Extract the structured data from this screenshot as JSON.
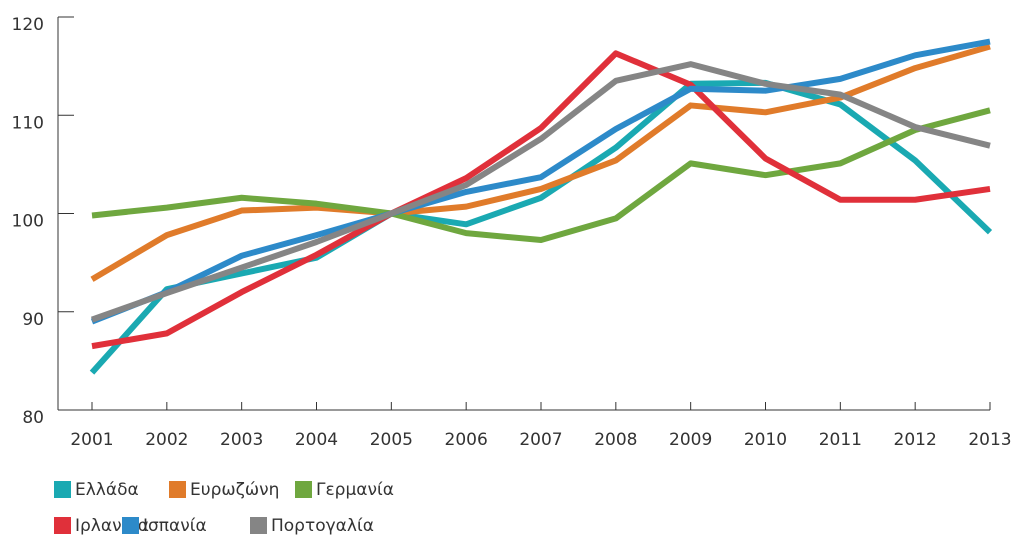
{
  "chart_data": {
    "type": "line",
    "categories": [
      "2001",
      "2002",
      "2003",
      "2004",
      "2005",
      "2006",
      "2007",
      "2008",
      "2009",
      "2010",
      "2011",
      "2012",
      "2013"
    ],
    "series": [
      {
        "name": "Ελλάδα",
        "color": "#1aa9b2",
        "values": [
          83.8,
          92.3,
          93.9,
          95.5,
          100,
          98.9,
          101.6,
          106.7,
          113.2,
          113.3,
          111.1,
          105.4,
          98.1
        ]
      },
      {
        "name": "Ευρωζώνη",
        "color": "#e07b2a",
        "values": [
          93.3,
          97.8,
          100.3,
          100.6,
          100,
          100.7,
          102.5,
          105.4,
          111.0,
          110.3,
          111.8,
          114.8,
          117.0
        ]
      },
      {
        "name": "Γερμανία",
        "color": "#6fa73f",
        "values": [
          99.8,
          100.6,
          101.6,
          101.0,
          100,
          98.0,
          97.3,
          99.5,
          105.1,
          103.9,
          105.1,
          108.5,
          110.5
        ]
      },
      {
        "name": "Ιρλανδία",
        "color": "#e0303a",
        "values": [
          86.5,
          87.8,
          92.0,
          95.8,
          100,
          103.6,
          108.7,
          116.3,
          113.1,
          105.6,
          101.4,
          101.4,
          102.5
        ]
      },
      {
        "name": "Ισπανία",
        "color": "#2d8ac9",
        "values": [
          89.0,
          92.0,
          95.7,
          97.8,
          100,
          102.2,
          103.7,
          108.6,
          112.7,
          112.5,
          113.7,
          116.1,
          117.5
        ]
      },
      {
        "name": "Πορτογαλία",
        "color": "#858585",
        "values": [
          89.2,
          91.9,
          94.5,
          97.1,
          100,
          102.9,
          107.6,
          113.5,
          115.2,
          113.2,
          112.1,
          108.8,
          106.9
        ]
      }
    ],
    "ylim": [
      80,
      120
    ],
    "yticks": [
      80,
      90,
      100,
      110,
      120
    ]
  }
}
